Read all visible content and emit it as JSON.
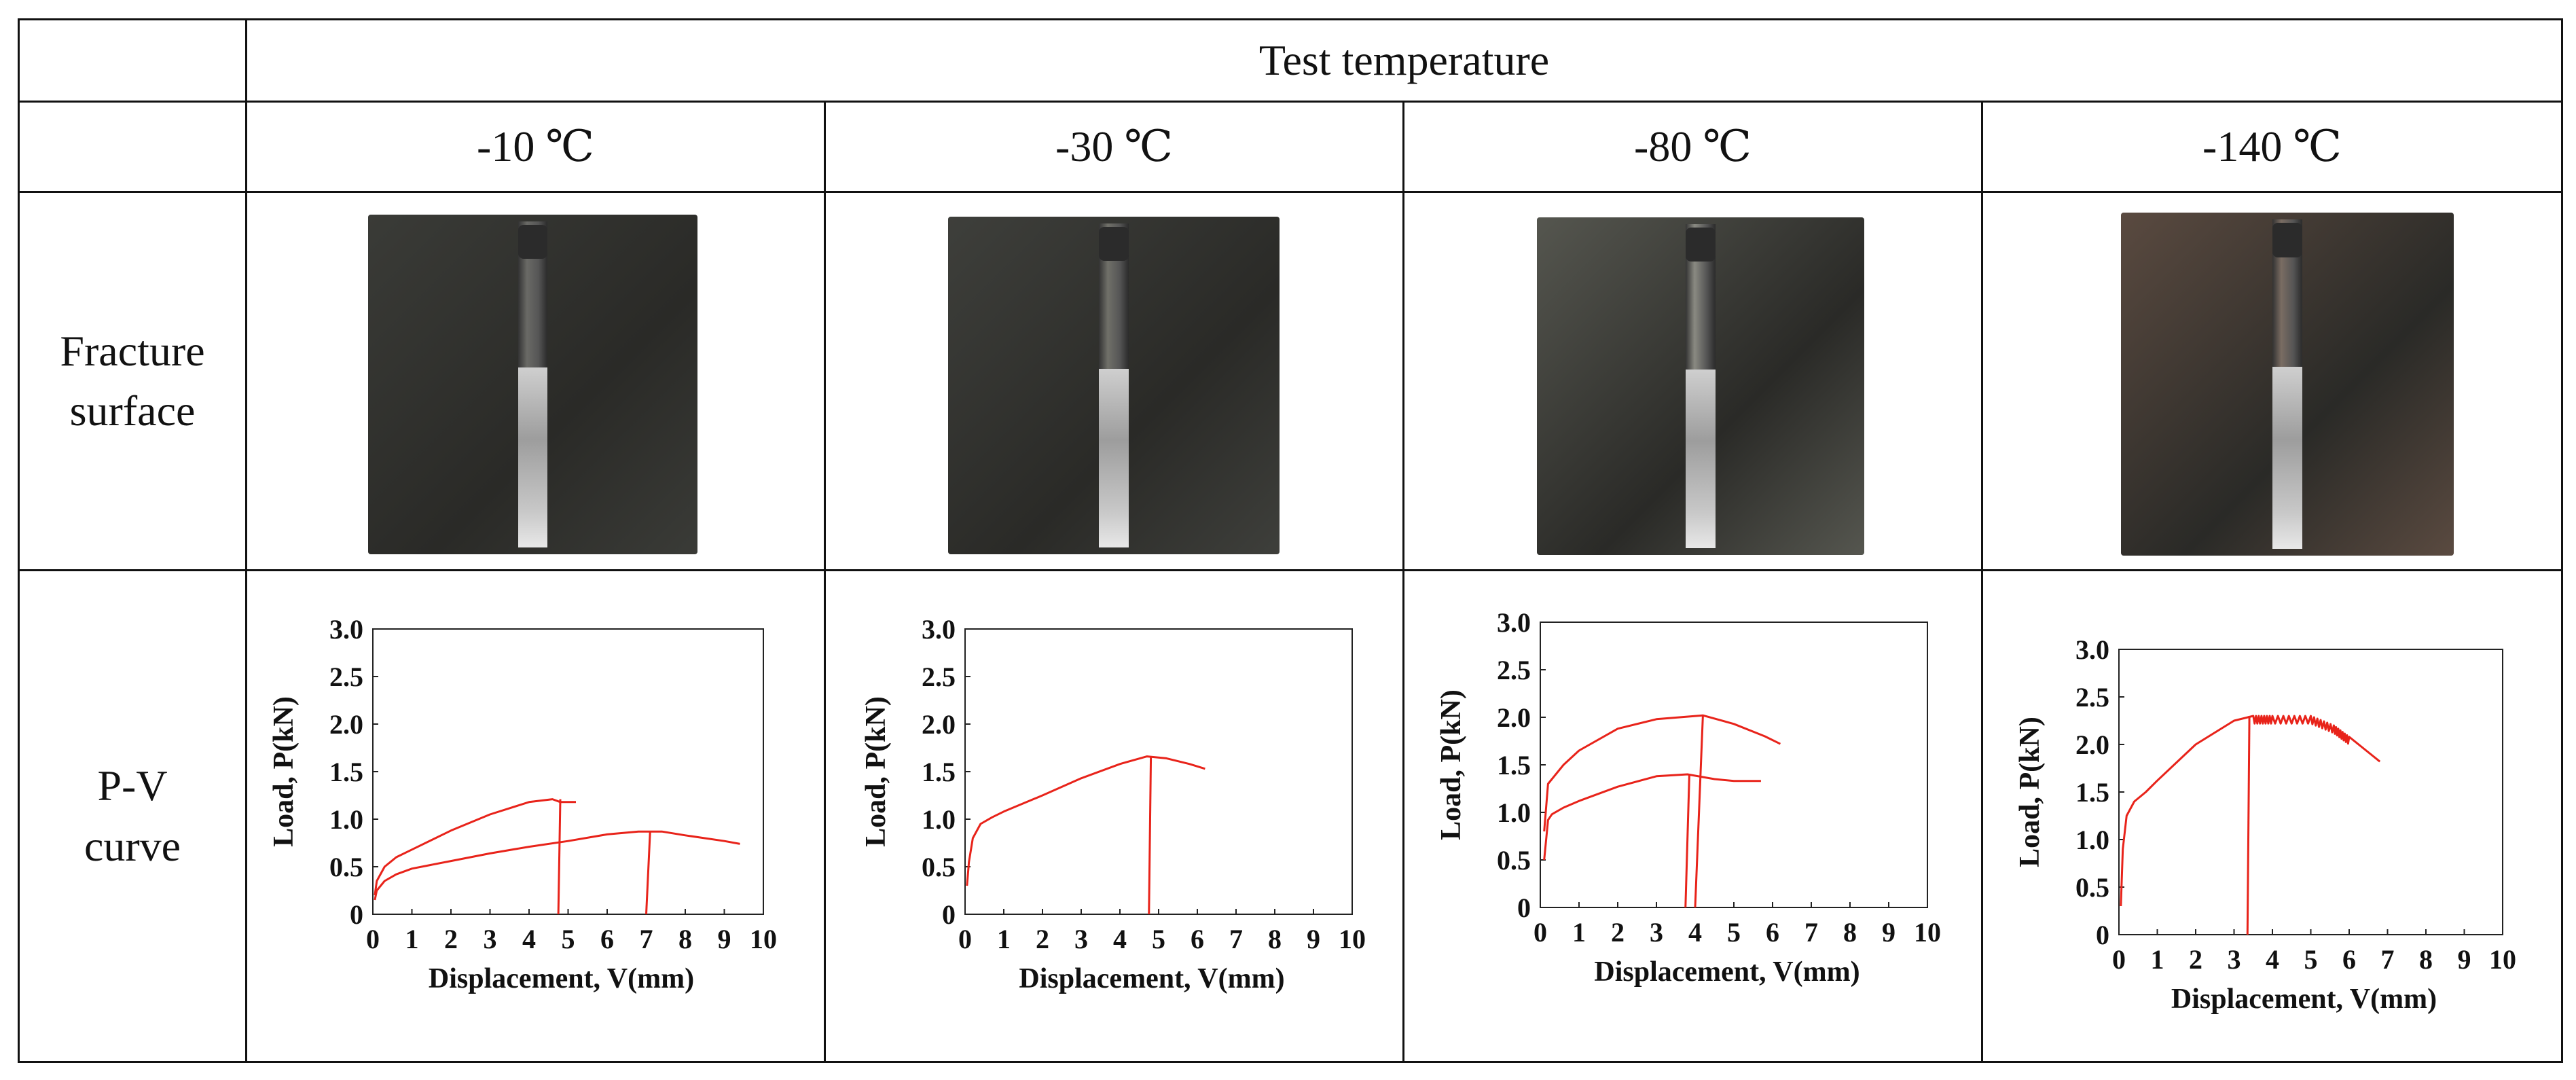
{
  "header": {
    "test_temperature": "Test temperature",
    "temps": [
      "-10 ℃",
      "-30 ℃",
      "-80 ℃",
      "-140 ℃"
    ]
  },
  "rows": {
    "fracture_line1": "Fracture",
    "fracture_line2": "surface",
    "pv_line1": "P-V",
    "pv_line2": "curve"
  },
  "colors": {
    "curve": "#e8231a",
    "photo_bgs": [
      "#3a3b37",
      "#3e3f3b",
      "#55564f",
      "#5a4a40"
    ]
  },
  "chart_data": [
    {
      "type": "line",
      "xlabel": "Displacement, V(mm)",
      "ylabel": "Load, P(kN)",
      "xlim": [
        0,
        10
      ],
      "ylim": [
        0,
        3.0
      ],
      "x_ticks": [
        "0",
        "1",
        "2",
        "3",
        "4",
        "5",
        "6",
        "7",
        "8",
        "9",
        "10"
      ],
      "y_ticks": [
        "0",
        "0.5",
        "1.0",
        "1.5",
        "2.0",
        "2.5",
        "3.0"
      ],
      "series": [
        {
          "x": [
            0.05,
            0.1,
            0.3,
            0.6,
            1.0,
            2.0,
            3.0,
            4.0,
            4.6,
            4.8,
            5.2
          ],
          "y": [
            0.2,
            0.35,
            0.5,
            0.6,
            0.68,
            0.88,
            1.05,
            1.18,
            1.21,
            1.18,
            1.18
          ],
          "unload": [
            4.75,
            4.8
          ]
        },
        {
          "x": [
            0.05,
            0.1,
            0.3,
            0.6,
            1.0,
            2.0,
            3.0,
            4.0,
            5.0,
            6.0,
            6.8,
            7.4,
            8.0,
            9.0,
            9.4
          ],
          "y": [
            0.15,
            0.25,
            0.35,
            0.42,
            0.48,
            0.56,
            0.64,
            0.71,
            0.77,
            0.84,
            0.87,
            0.87,
            0.83,
            0.77,
            0.74
          ],
          "unload": [
            7.0,
            7.1
          ]
        }
      ]
    },
    {
      "type": "line",
      "xlabel": "Displacement, V(mm)",
      "ylabel": "Load, P(kN)",
      "xlim": [
        0,
        10
      ],
      "ylim": [
        0,
        3.0
      ],
      "x_ticks": [
        "0",
        "1",
        "2",
        "3",
        "4",
        "5",
        "6",
        "7",
        "8",
        "9",
        "10"
      ],
      "y_ticks": [
        "0",
        "0.5",
        "1.0",
        "1.5",
        "2.0",
        "2.5",
        "3.0"
      ],
      "series": [
        {
          "x": [
            0.05,
            0.1,
            0.2,
            0.4,
            0.7,
            1.0,
            2.0,
            3.0,
            4.0,
            4.7,
            5.2,
            5.8,
            6.2
          ],
          "y": [
            0.3,
            0.55,
            0.8,
            0.95,
            1.02,
            1.08,
            1.25,
            1.43,
            1.58,
            1.66,
            1.64,
            1.58,
            1.53
          ],
          "unload": [
            4.75,
            4.8
          ]
        }
      ]
    },
    {
      "type": "line",
      "xlabel": "Displacement, V(mm)",
      "ylabel": "Load, P(kN)",
      "xlim": [
        0,
        10
      ],
      "ylim": [
        0,
        3.0
      ],
      "x_ticks": [
        "0",
        "1",
        "2",
        "3",
        "4",
        "5",
        "6",
        "7",
        "8",
        "9",
        "10"
      ],
      "y_ticks": [
        "0",
        "0.5",
        "1.0",
        "1.5",
        "2.0",
        "2.5",
        "3.0"
      ],
      "series": [
        {
          "x": [
            0.1,
            0.2,
            0.3,
            0.6,
            1.0,
            2.0,
            3.0,
            3.6,
            4.2,
            5.0,
            5.8,
            6.2
          ],
          "y": [
            0.8,
            1.3,
            1.35,
            1.5,
            1.65,
            1.88,
            1.98,
            2.0,
            2.02,
            1.93,
            1.8,
            1.72
          ],
          "unload": [
            4.0,
            4.2
          ]
        },
        {
          "x": [
            0.1,
            0.2,
            0.3,
            0.6,
            1.0,
            2.0,
            3.0,
            3.8,
            4.5,
            5.0,
            5.7
          ],
          "y": [
            0.5,
            0.92,
            0.98,
            1.05,
            1.12,
            1.27,
            1.38,
            1.4,
            1.35,
            1.33,
            1.33
          ],
          "unload": [
            3.75,
            3.85
          ]
        }
      ]
    },
    {
      "type": "line",
      "xlabel": "Displacement, V(mm)",
      "ylabel": "Load, P(kN)",
      "xlim": [
        0,
        10
      ],
      "ylim": [
        0,
        3.0
      ],
      "x_ticks": [
        "0",
        "1",
        "2",
        "3",
        "4",
        "5",
        "6",
        "7",
        "8",
        "9",
        "10"
      ],
      "y_ticks": [
        "0",
        "0.5",
        "1.0",
        "1.5",
        "2.0",
        "2.5",
        "3.0"
      ],
      "series": [
        {
          "x": [
            0.05,
            0.1,
            0.2,
            0.4,
            0.7,
            1.0,
            2.0,
            3.0,
            3.5,
            4.0,
            5.0,
            5.6,
            6.0,
            6.4,
            6.8
          ],
          "y": [
            0.3,
            0.9,
            1.25,
            1.4,
            1.5,
            1.62,
            2.0,
            2.25,
            2.3,
            2.3,
            2.3,
            2.2,
            2.08,
            1.95,
            1.82
          ],
          "unload": [
            3.35,
            3.4
          ],
          "noise_from": 3.3,
          "noise_to": 6.3
        }
      ]
    }
  ]
}
